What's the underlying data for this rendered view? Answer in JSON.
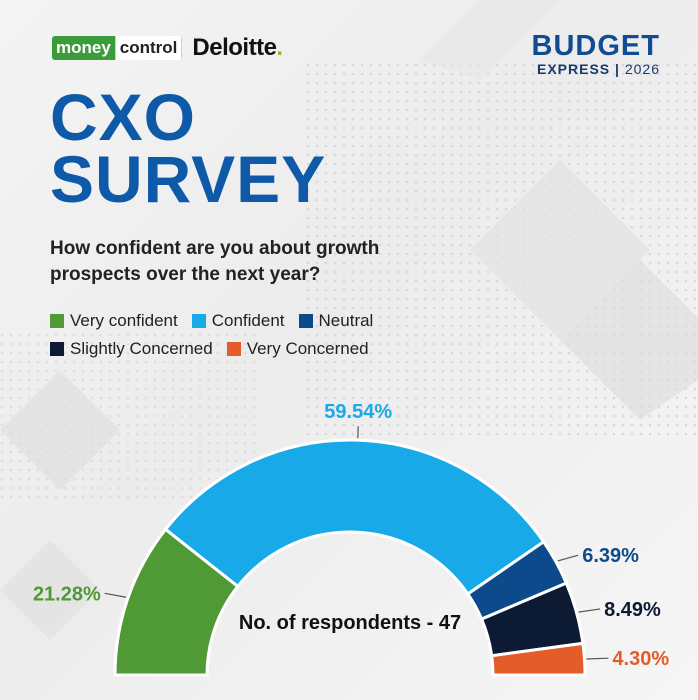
{
  "brand": {
    "logo_left_a": "money",
    "logo_left_b": "control",
    "logo_partner": "Deloitte",
    "event_line1": "BUDGET",
    "event_line2": "EXPRESS",
    "event_year": "2026"
  },
  "headline": {
    "line1": "CXO",
    "line2": "SURVEY"
  },
  "question": "How confident are you about growth prospects over the next year?",
  "colors": {
    "very_confident": "#4f9a35",
    "confident": "#18a9e8",
    "neutral": "#0d4a8c",
    "slightly_concerned": "#0d1a33",
    "very_concerned": "#e35c2a",
    "headline": "#0f5aa8"
  },
  "chart_data": {
    "type": "pie",
    "variant": "semi-donut",
    "categories": [
      "Very confident",
      "Confident",
      "Neutral",
      "Slightly Concerned",
      "Very Concerned"
    ],
    "values": [
      21.28,
      59.54,
      6.39,
      8.49,
      4.3
    ],
    "labels": [
      "21.28%",
      "59.54%",
      "6.39%",
      "8.49%",
      "4.30%"
    ],
    "legend": "top-left",
    "note": "No. of respondents - 47"
  }
}
